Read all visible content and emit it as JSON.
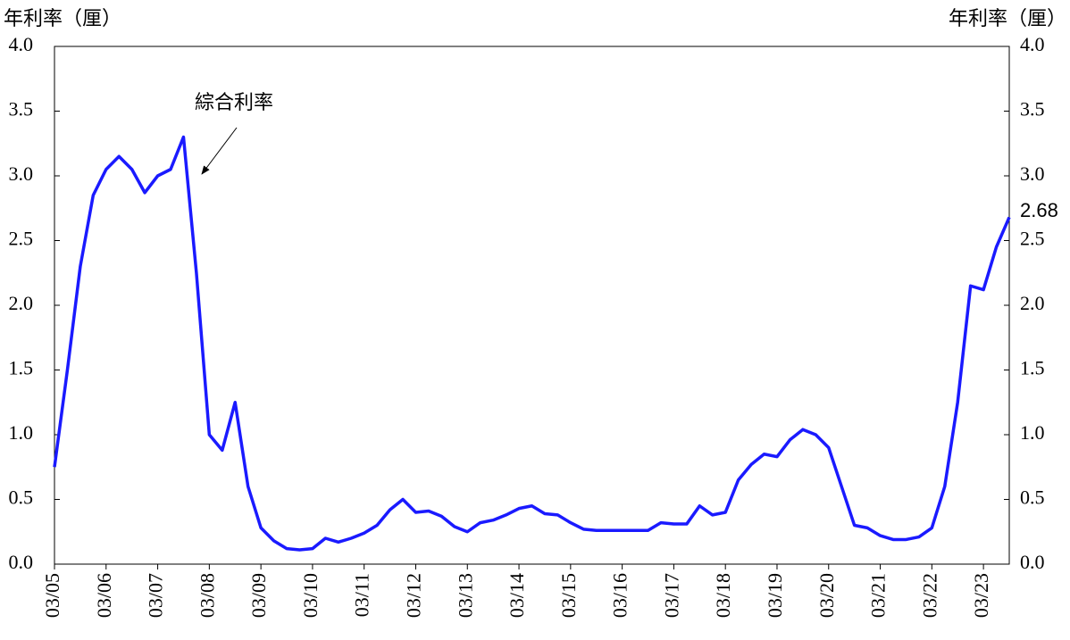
{
  "chart_data": {
    "type": "line",
    "y_label": "年利率（厘）",
    "y2_label": "年利率（厘）",
    "annotation": "綜合利率",
    "categories": [
      "03/05",
      null,
      null,
      null,
      "03/06",
      null,
      null,
      null,
      "03/07",
      null,
      null,
      null,
      "03/08",
      null,
      null,
      null,
      "03/09",
      null,
      null,
      null,
      "03/10",
      null,
      null,
      null,
      "03/11",
      null,
      null,
      null,
      "03/12",
      null,
      null,
      null,
      "03/13",
      null,
      null,
      null,
      "03/14",
      null,
      null,
      null,
      "03/15",
      null,
      null,
      null,
      "03/16",
      null,
      null,
      null,
      "03/17",
      null,
      null,
      null,
      "03/18",
      null,
      null,
      null,
      "03/19",
      null,
      null,
      null,
      "03/20",
      null,
      null,
      null,
      "03/21",
      null,
      null,
      null,
      "03/22",
      null,
      null,
      null,
      "03/23",
      null,
      null
    ],
    "series": [
      {
        "name": "綜合利率",
        "color": "#1a1aff",
        "values": [
          0.75,
          1.5,
          2.3,
          2.85,
          3.05,
          3.15,
          3.05,
          2.87,
          3.0,
          3.05,
          3.3,
          2.25,
          1.0,
          0.88,
          1.25,
          0.6,
          0.28,
          0.18,
          0.12,
          0.11,
          0.12,
          0.2,
          0.17,
          0.2,
          0.24,
          0.3,
          0.42,
          0.5,
          0.4,
          0.41,
          0.37,
          0.29,
          0.25,
          0.32,
          0.34,
          0.38,
          0.43,
          0.45,
          0.39,
          0.38,
          0.32,
          0.27,
          0.26,
          0.26,
          0.26,
          0.26,
          0.26,
          0.32,
          0.31,
          0.31,
          0.45,
          0.38,
          0.4,
          0.65,
          0.77,
          0.85,
          0.83,
          0.96,
          1.04,
          1.0,
          0.9,
          0.6,
          0.3,
          0.28,
          0.22,
          0.19,
          0.19,
          0.21,
          0.28,
          0.6,
          1.25,
          2.15,
          2.12,
          2.45,
          2.68
        ]
      }
    ],
    "ylim": [
      0,
      4
    ],
    "yticks": [
      {
        "value": 0,
        "label": "0.0"
      },
      {
        "value": 0.5,
        "label": "0.5"
      },
      {
        "value": 1,
        "label": "1.0"
      },
      {
        "value": 1.5,
        "label": "1.5"
      },
      {
        "value": 2,
        "label": "2.0"
      },
      {
        "value": 2.5,
        "label": "2.5"
      },
      {
        "value": 3,
        "label": "3.0"
      },
      {
        "value": 3.5,
        "label": "3.5"
      },
      {
        "value": 4,
        "label": "4.0"
      }
    ],
    "y2lim": [
      0,
      4
    ],
    "y2ticks": [
      {
        "value": 0,
        "label": "0.0"
      },
      {
        "value": 0.5,
        "label": "0.5"
      },
      {
        "value": 1,
        "label": "1.0"
      },
      {
        "value": 1.5,
        "label": "1.5"
      },
      {
        "value": 2,
        "label": "2.0"
      },
      {
        "value": 2.5,
        "label": "2.5"
      },
      {
        "value": 3,
        "label": "3.0"
      },
      {
        "value": 3.5,
        "label": "3.5"
      },
      {
        "value": 4,
        "label": "4.0"
      }
    ]
  }
}
